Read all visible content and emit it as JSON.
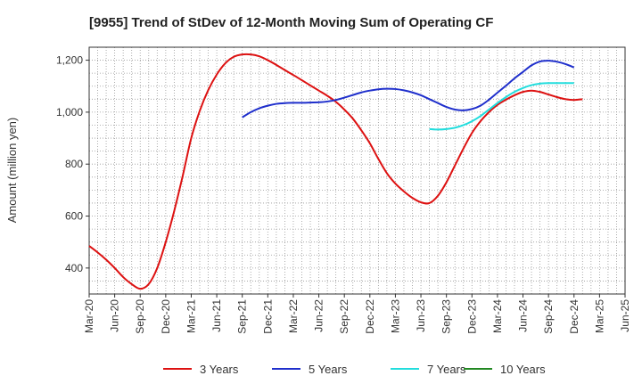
{
  "chart_data": {
    "type": "line",
    "title": "[9955]  Trend of StDev of 12-Month Moving Sum of Operating CF",
    "xlabel": "",
    "ylabel": "Amount (million yen)",
    "ylim": [
      300,
      1250
    ],
    "yticks": [
      400,
      600,
      800,
      1000,
      1200
    ],
    "ytick_labels": [
      "400",
      "600",
      "800",
      "1,000",
      "1,200"
    ],
    "grid": true,
    "x_tick_labels": [
      "Mar-20",
      "Jun-20",
      "Sep-20",
      "Dec-20",
      "Mar-21",
      "Jun-21",
      "Sep-21",
      "Dec-21",
      "Mar-22",
      "Jun-22",
      "Sep-22",
      "Dec-22",
      "Mar-23",
      "Jun-23",
      "Sep-23",
      "Dec-23",
      "Mar-24",
      "Jun-24",
      "Sep-24",
      "Dec-24",
      "Mar-25",
      "Jun-25"
    ],
    "legend_position": "bottom",
    "series": [
      {
        "name": "3 Years",
        "color": "#dd1111",
        "start_index": 0,
        "values": [
          485,
          460,
          432,
          400,
          365,
          338,
          320,
          338,
          400,
          500,
          620,
          755,
          900,
          1005,
          1085,
          1145,
          1188,
          1213,
          1222,
          1222,
          1215,
          1200,
          1182,
          1162,
          1143,
          1123,
          1103,
          1083,
          1063,
          1040,
          1010,
          975,
          930,
          880,
          820,
          765,
          725,
          695,
          670,
          653,
          650,
          678,
          730,
          795,
          860,
          920,
          965,
          1000,
          1028,
          1048,
          1065,
          1078,
          1083,
          1078,
          1068,
          1058,
          1050,
          1047,
          1050
        ]
      },
      {
        "name": "5 Years",
        "color": "#1f2fcc",
        "start_index": 18,
        "values": [
          980,
          1000,
          1015,
          1025,
          1032,
          1035,
          1036,
          1036,
          1037,
          1038,
          1041,
          1047,
          1056,
          1066,
          1076,
          1083,
          1088,
          1090,
          1089,
          1084,
          1076,
          1065,
          1050,
          1035,
          1020,
          1010,
          1007,
          1012,
          1025,
          1048,
          1075,
          1102,
          1130,
          1155,
          1180,
          1195,
          1198,
          1194,
          1185,
          1172
        ]
      },
      {
        "name": "7 Years",
        "color": "#22dddd",
        "start_index": 40,
        "values": [
          935,
          933,
          935,
          940,
          950,
          965,
          985,
          1010,
          1035,
          1058,
          1078,
          1093,
          1104,
          1110,
          1112,
          1112,
          1112,
          1112
        ]
      },
      {
        "name": "10 Years",
        "color": "#228822",
        "start_index": 0,
        "values": []
      }
    ]
  }
}
